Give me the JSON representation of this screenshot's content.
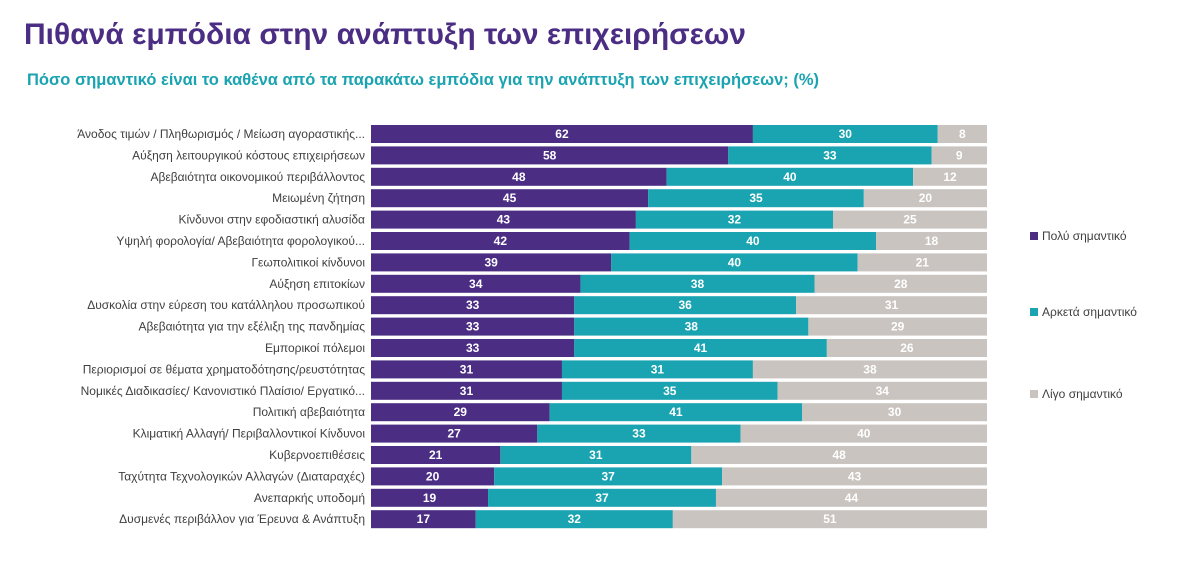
{
  "title": "Πιθανά εμπόδια στην ανάπτυξη των επιχειρήσεων",
  "subtitle": "Πόσο σημαντικό είναι το καθένα από τα παρακάτω εμπόδια για την ανάπτυξη των επιχειρήσεων; (%)",
  "colors": {
    "very": "#4b2e83",
    "fairly": "#1aa3b0",
    "little": "#c9c4bf"
  },
  "chart_data": {
    "type": "bar",
    "orientation": "horizontal",
    "stacked": true,
    "categories": [
      "Άνοδος τιμών / Πληθωρισμός / Μείωση αγοραστικής...",
      "Αύξηση λειτουργικού κόστους επιχειρήσεων",
      "Αβεβαιότητα οικονομικού περιβάλλοντος",
      "Μειωμένη ζήτηση",
      "Κίνδυνοι στην εφοδιαστική αλυσίδα",
      "Υψηλή φορολογία/ Αβεβαιότητα φορολογικού...",
      "Γεωπολιτικοί κίνδυνοι",
      "Αύξηση επιτοκίων",
      "Δυσκολία στην εύρεση του κατάλληλου προσωπικού",
      "Αβεβαιότητα για την εξέλιξη της πανδημίας",
      "Εμπορικοί πόλεμοι",
      "Περιορισμοί σε θέματα χρηματοδότησης/ρευστότητας",
      "Νομικές Διαδικασίες/ Κανονιστικό Πλαίσιο/ Εργατικό...",
      "Πολιτική αβεβαιότητα",
      "Κλιματική Αλλαγή/ Περιβαλλοντικοί Κίνδυνοι",
      "Κυβερνοεπιθέσεις",
      "Ταχύτητα Τεχνολογικών Αλλαγών (Διαταραχές)",
      "Ανεπαρκής υποδομή",
      "Δυσμενές περιβάλλον για Έρευνα & Ανάπτυξη"
    ],
    "series": [
      {
        "name": "Πολύ σημαντικό",
        "values": [
          62,
          58,
          48,
          45,
          43,
          42,
          39,
          34,
          33,
          33,
          33,
          31,
          31,
          29,
          27,
          21,
          20,
          19,
          17
        ]
      },
      {
        "name": "Αρκετά σημαντικό",
        "values": [
          30,
          33,
          40,
          35,
          32,
          40,
          40,
          38,
          36,
          38,
          41,
          31,
          35,
          41,
          33,
          31,
          37,
          37,
          32
        ]
      },
      {
        "name": "Λίγο σημαντικό",
        "values": [
          8,
          9,
          12,
          20,
          25,
          18,
          21,
          28,
          31,
          29,
          26,
          38,
          34,
          30,
          40,
          48,
          43,
          44,
          51
        ]
      }
    ],
    "legend_position": "right",
    "grid": false
  }
}
